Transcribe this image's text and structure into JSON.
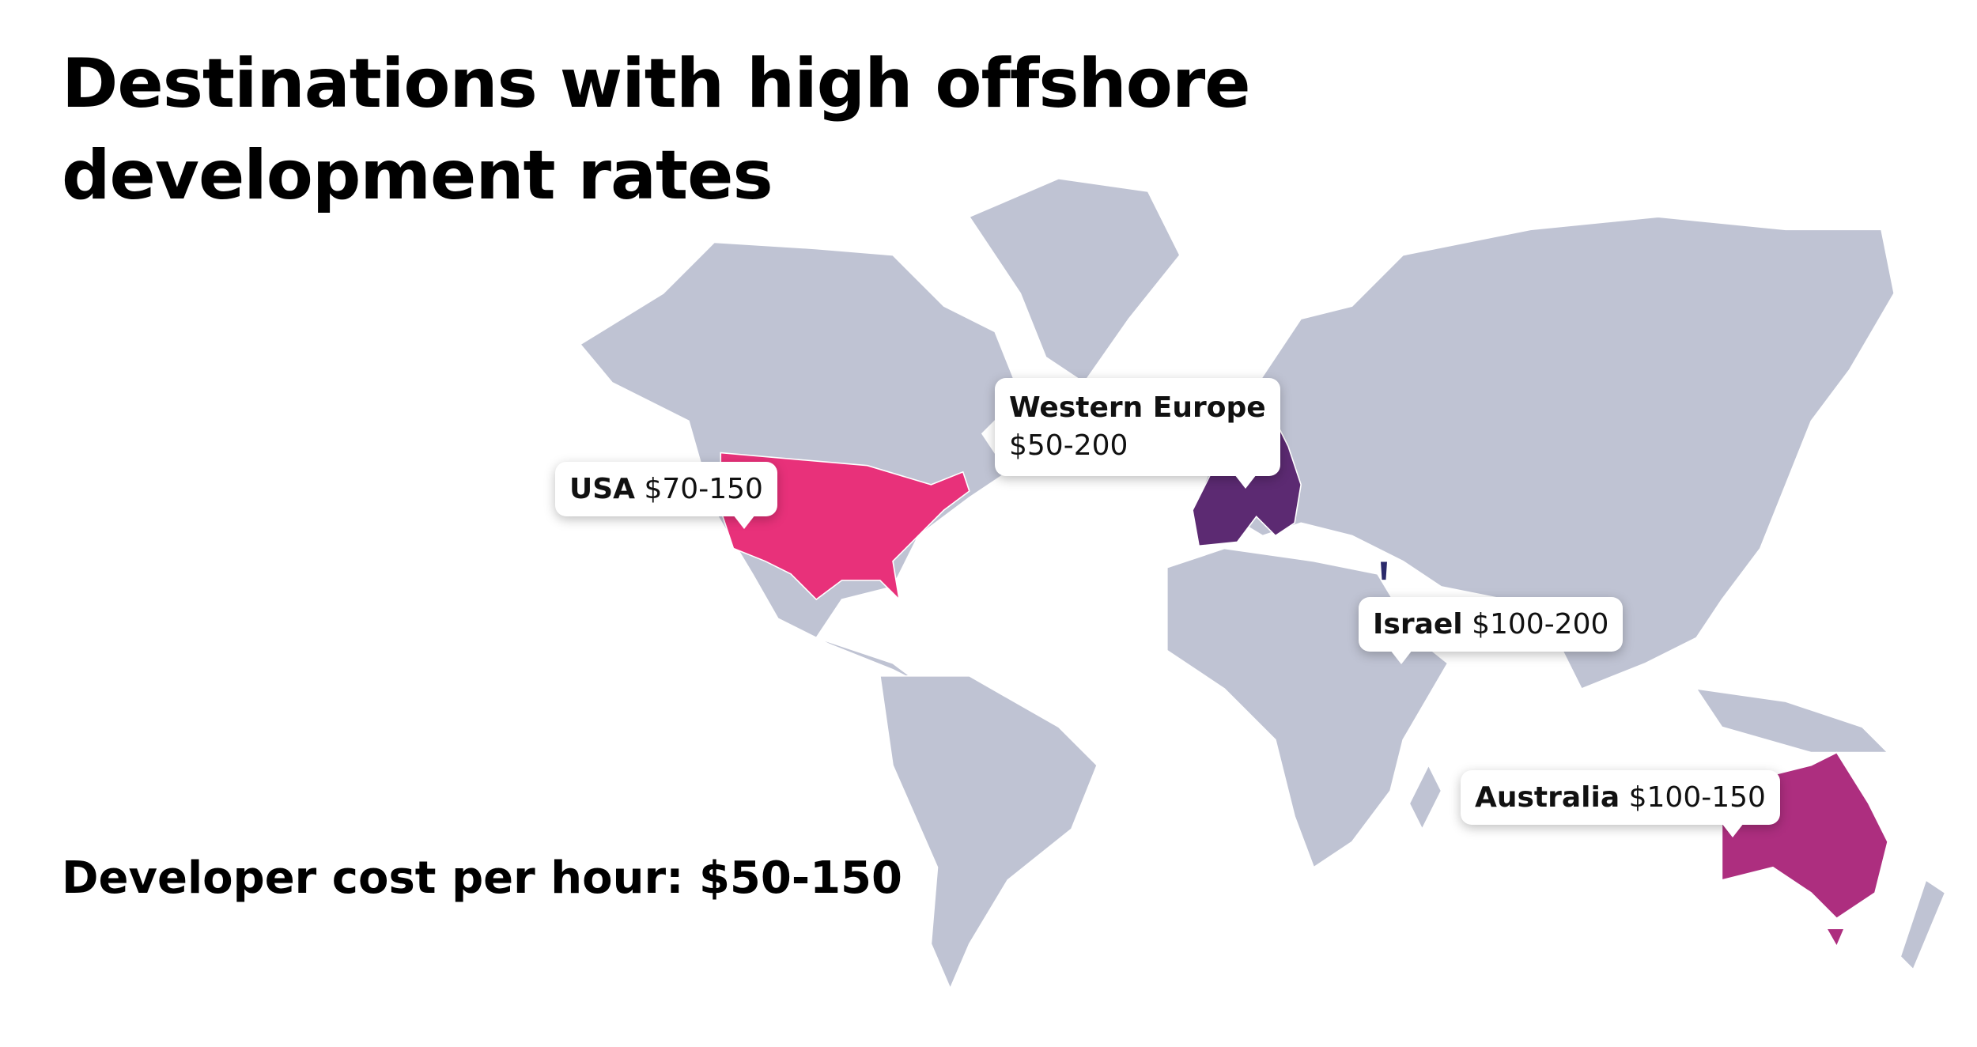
{
  "title": "Destinations with high offshore development rates",
  "callouts": [
    {
      "name": "USA",
      "rate": "$70-150",
      "color": "#e8317a"
    },
    {
      "name": "Western Europe",
      "rate": "$50-200",
      "color": "#5c2a72"
    },
    {
      "name": "Israel",
      "rate": "$100-200",
      "color": "#2b2a6b"
    },
    {
      "name": "Australia",
      "rate": "$100-150",
      "color": "#ad2e7f"
    }
  ],
  "summary": "Developer cost per hour: $50-150"
}
